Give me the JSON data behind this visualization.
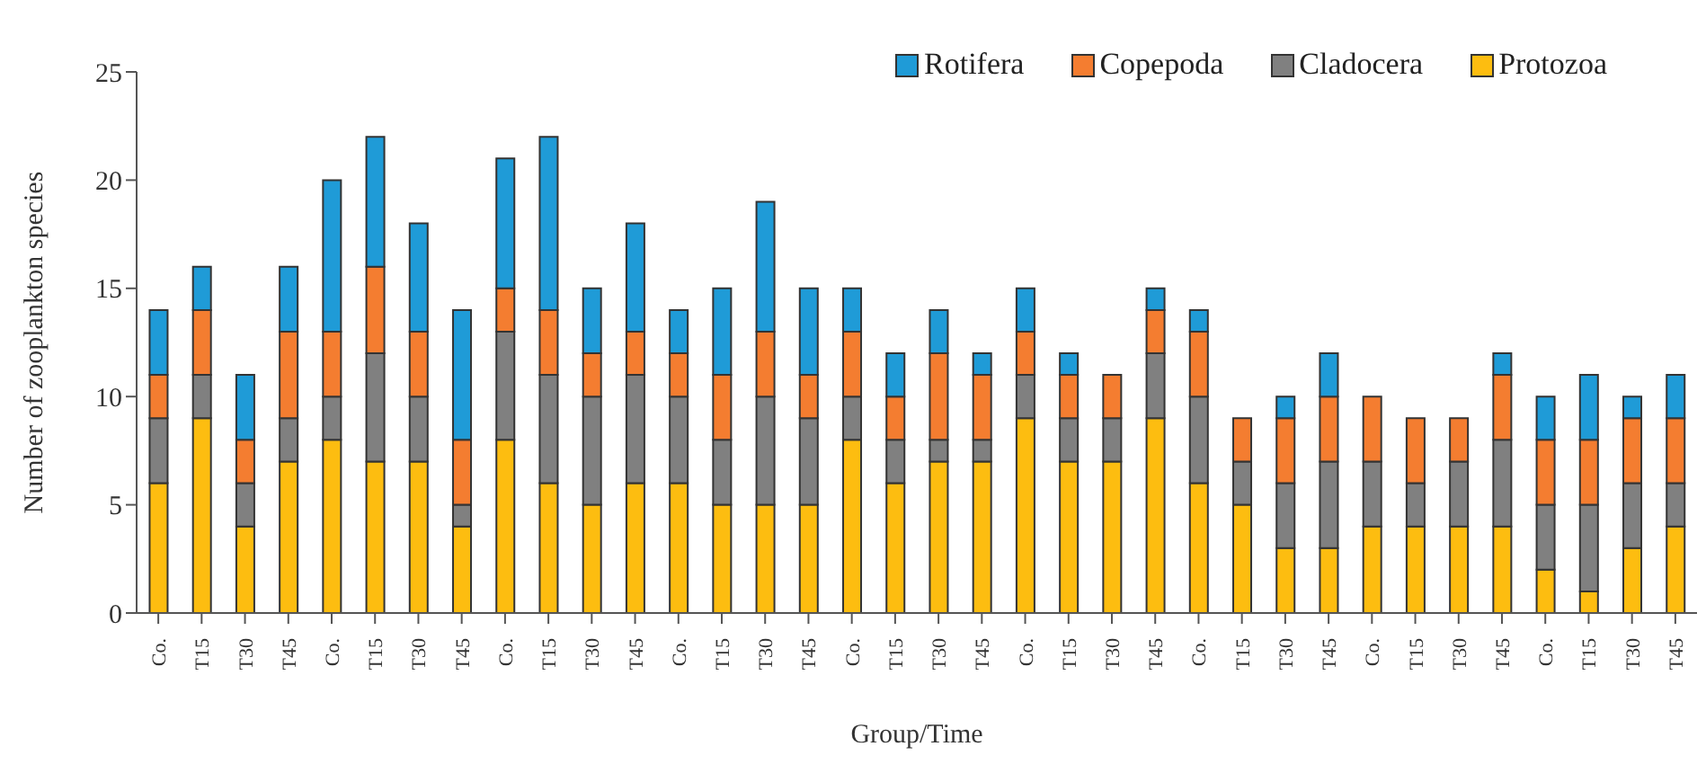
{
  "chart_data": {
    "type": "bar",
    "stacked": true,
    "xlabel": "Group/Time",
    "ylabel": "Number of zooplankton species",
    "categories": [
      "Co.",
      "T15",
      "T30",
      "T45",
      "Co.",
      "T15",
      "T30",
      "T45",
      "Co.",
      "T15",
      "T30",
      "T45",
      "Co.",
      "T15",
      "T30",
      "T45",
      "Co.",
      "T15",
      "T30",
      "T45",
      "Co.",
      "T15",
      "T30",
      "T45",
      "Co.",
      "T15",
      "T30",
      "T45",
      "Co.",
      "T15",
      "T30",
      "T45",
      "Co.",
      "T15",
      "T30",
      "T45"
    ],
    "series": [
      {
        "name": "Protozoa",
        "color": "#fdbd10",
        "values": [
          6,
          9,
          4,
          7,
          8,
          7,
          7,
          4,
          8,
          6,
          5,
          6,
          6,
          5,
          5,
          5,
          8,
          6,
          7,
          7,
          9,
          7,
          7,
          9,
          6,
          5,
          3,
          3,
          4,
          4,
          4,
          4,
          2,
          1,
          3,
          4
        ]
      },
      {
        "name": "Cladocera",
        "color": "#808080",
        "values": [
          3,
          2,
          2,
          2,
          2,
          5,
          3,
          1,
          5,
          5,
          5,
          5,
          4,
          3,
          5,
          4,
          2,
          2,
          1,
          1,
          2,
          2,
          2,
          3,
          4,
          2,
          3,
          4,
          3,
          2,
          3,
          4,
          3,
          4,
          3,
          2
        ]
      },
      {
        "name": "Copepoda",
        "color": "#f47d30",
        "values": [
          2,
          3,
          2,
          4,
          3,
          4,
          3,
          3,
          2,
          3,
          2,
          2,
          2,
          3,
          3,
          2,
          3,
          2,
          4,
          3,
          2,
          2,
          2,
          2,
          3,
          2,
          3,
          3,
          3,
          3,
          2,
          3,
          3,
          3,
          3,
          3
        ]
      },
      {
        "name": "Rotifera",
        "color": "#1f9bd7",
        "values": [
          3,
          2,
          3,
          3,
          7,
          6,
          5,
          6,
          6,
          8,
          3,
          5,
          2,
          4,
          6,
          4,
          2,
          2,
          2,
          1,
          2,
          1,
          0,
          1,
          1,
          0,
          1,
          2,
          0,
          0,
          0,
          1,
          2,
          3,
          1,
          2
        ]
      }
    ],
    "ylim": [
      0,
      25
    ],
    "yticks": [
      0,
      5,
      10,
      15,
      20,
      25
    ],
    "grid": false,
    "legend": "top right"
  }
}
